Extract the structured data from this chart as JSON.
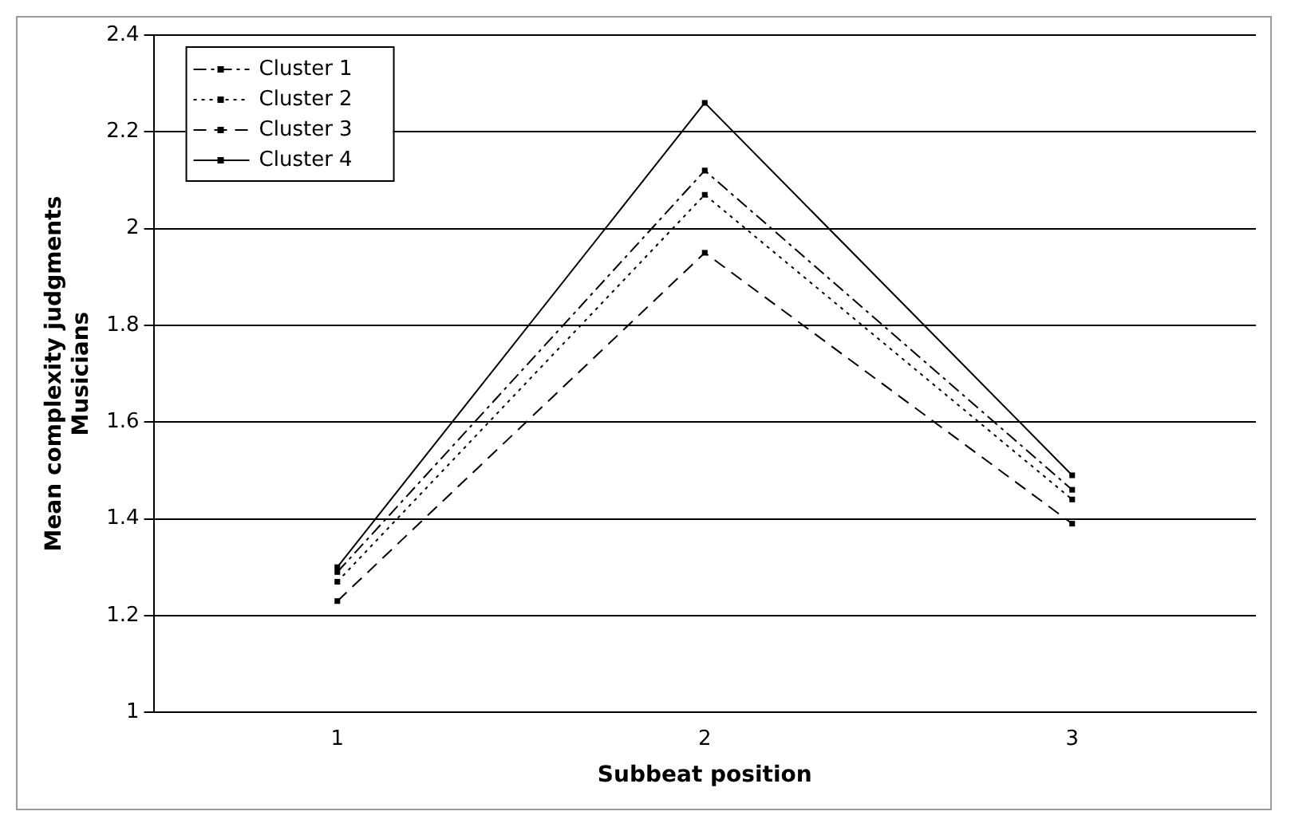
{
  "chart_data": {
    "type": "line",
    "xlabel": "Subbeat position",
    "ylabel": "Mean complexity judgments\nMusicians",
    "categories": [
      "1",
      "2",
      "3"
    ],
    "series": [
      {
        "name": "Cluster 1",
        "color": "#000000",
        "values": [
          1.29,
          2.12,
          1.46
        ],
        "line_style": "dashdot"
      },
      {
        "name": "Cluster 2",
        "color": "#000000",
        "values": [
          1.27,
          2.07,
          1.44
        ],
        "line_style": "dotted"
      },
      {
        "name": "Cluster 3",
        "color": "#000000",
        "values": [
          1.23,
          1.95,
          1.39
        ],
        "line_style": "dashed"
      },
      {
        "name": "Cluster 4",
        "color": "#000000",
        "values": [
          1.3,
          2.26,
          1.49
        ],
        "line_style": "solid"
      }
    ],
    "ylim": [
      1,
      2.4
    ],
    "yticks": [
      1,
      1.2,
      1.4,
      1.6,
      1.8,
      2,
      2.2,
      2.4
    ],
    "grid": "y",
    "legend": "top left",
    "marker": "square"
  }
}
